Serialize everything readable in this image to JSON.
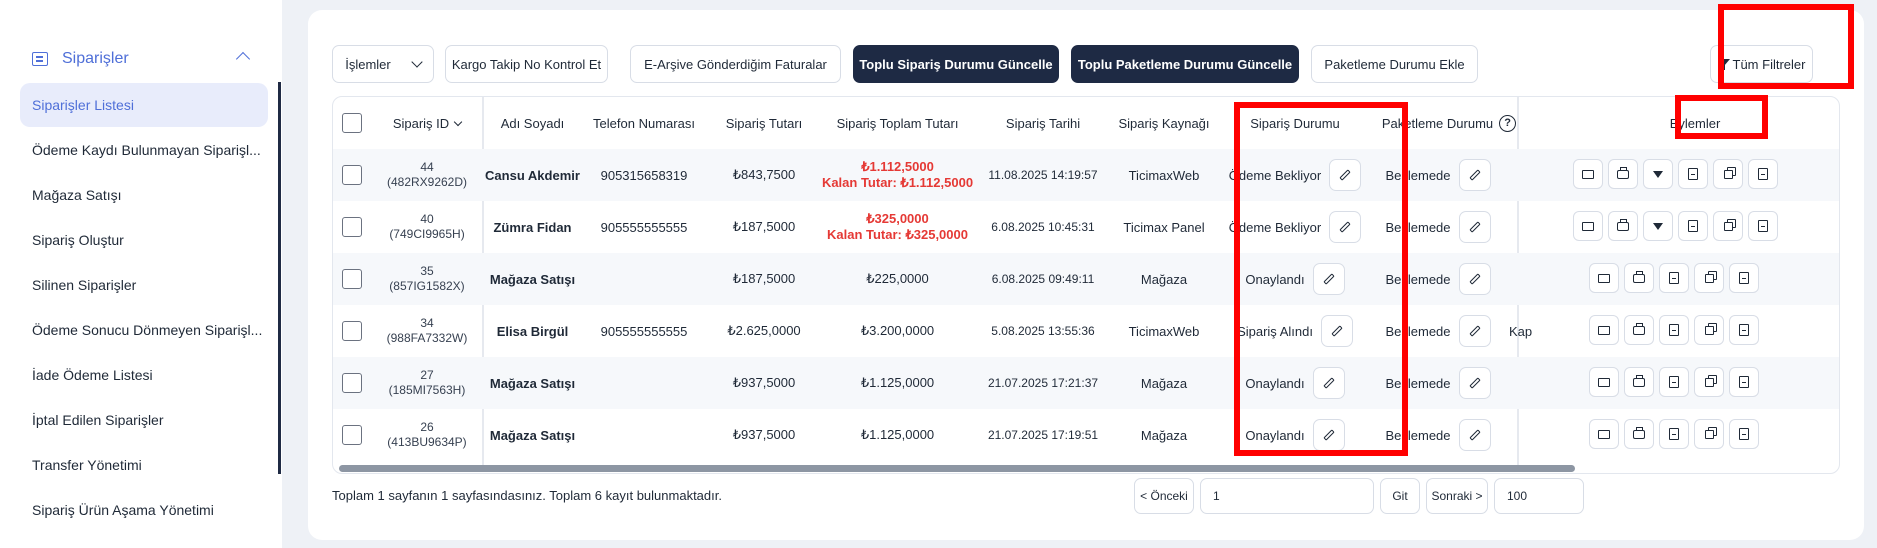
{
  "sidebar": {
    "section": {
      "label": "Siparişler",
      "icon": "orders-icon"
    },
    "items": [
      {
        "label": "Siparişler Listesi",
        "active": true
      },
      {
        "label": "Ödeme Kaydı Bulunmayan Siparişl..."
      },
      {
        "label": "Mağaza Satışı"
      },
      {
        "label": "Sipariş Oluştur"
      },
      {
        "label": "Silinen Siparişler"
      },
      {
        "label": "Ödeme Sonucu Dönmeyen Siparişl..."
      },
      {
        "label": "İade Ödeme Listesi"
      },
      {
        "label": "İptal Edilen Siparişler"
      },
      {
        "label": "Transfer Yönetimi"
      },
      {
        "label": "Sipariş Ürün Aşama Yönetimi"
      }
    ]
  },
  "toolbar": {
    "actions_select": "İşlemler",
    "cargo_check": "Kargo Takip No Kontrol Et",
    "earchive": "E-Arşive Gönderdiğim Faturalar",
    "bulk_order_status": "Toplu Sipariş Durumu Güncelle",
    "bulk_packaging_status": "Toplu Paketleme Durumu Güncelle",
    "add_packaging_status": "Paketleme Durumu Ekle",
    "all_filters": "Tüm Filtreler"
  },
  "table": {
    "headers": {
      "order_id": "Sipariş ID",
      "name": "Adı Soyadı",
      "phone": "Telefon Numarası",
      "amount": "Sipariş Tutarı",
      "total": "Sipariş Toplam Tutarı",
      "date": "Sipariş Tarihi",
      "source": "Sipariş Kaynağı",
      "status": "Sipariş Durumu",
      "packaging": "Paketleme Durumu",
      "actions": "Eylemler"
    },
    "rows": [
      {
        "id": "44",
        "code": "(482RX9262D)",
        "name": "Cansu Akdemir",
        "phone": "905315658319",
        "amount": "₺843,7500",
        "total": "₺1.112,5000",
        "remaining": "Kalan Tutar: ₺1.112,5000",
        "date": "11.08.2025 14:19:57",
        "source": "TicimaxWeb",
        "status": "Ödeme Bekliyor",
        "packaging": "Beklemede",
        "extra": ""
      },
      {
        "id": "40",
        "code": "(749CI9965H)",
        "name": "Zümra Fidan",
        "phone": "905555555555",
        "amount": "₺187,5000",
        "total": "₺325,0000",
        "remaining": "Kalan Tutar: ₺325,0000",
        "date": "6.08.2025 10:45:31",
        "source": "Ticimax Panel",
        "status": "Ödeme Bekliyor",
        "packaging": "Beklemede",
        "extra": ""
      },
      {
        "id": "35",
        "code": "(857IG1582X)",
        "name": "Mağaza Satışı",
        "phone": "",
        "amount": "₺187,5000",
        "total": "₺225,0000",
        "remaining": "",
        "date": "6.08.2025 09:49:11",
        "source": "Mağaza",
        "status": "Onaylandı",
        "packaging": "Beklemede",
        "extra": ""
      },
      {
        "id": "34",
        "code": "(988FA7332W)",
        "name": "Elisa Birgül",
        "phone": "905555555555",
        "amount": "₺2.625,0000",
        "total": "₺3.200,0000",
        "remaining": "",
        "date": "5.08.2025 13:55:36",
        "source": "TicimaxWeb",
        "status": "Sipariş Alındı",
        "packaging": "Beklemede",
        "extra": "Kap"
      },
      {
        "id": "27",
        "code": "(185MI7563H)",
        "name": "Mağaza Satışı",
        "phone": "",
        "amount": "₺937,5000",
        "total": "₺1.125,0000",
        "remaining": "",
        "date": "21.07.2025 17:21:37",
        "source": "Mağaza",
        "status": "Onaylandı",
        "packaging": "Beklemede",
        "extra": ""
      },
      {
        "id": "26",
        "code": "(413BU9634P)",
        "name": "Mağaza Satışı",
        "phone": "",
        "amount": "₺937,5000",
        "total": "₺1.125,0000",
        "remaining": "",
        "date": "21.07.2025 17:19:51",
        "source": "Mağaza",
        "status": "Onaylandı",
        "packaging": "Beklemede",
        "extra": ""
      }
    ]
  },
  "footer": {
    "summary": "Toplam 1 sayfanın 1 sayfasındasınız. Toplam 6 kayıt bulunmaktadır.",
    "prev": "< Önceki",
    "page_value": "1",
    "go": "Git",
    "next": "Sonraki >",
    "page_size": "100"
  },
  "colors": {
    "accent": "#4f6fd8",
    "dark_button": "#1e2a44",
    "alert_red": "#e53935",
    "highlight": "#ff0000"
  }
}
